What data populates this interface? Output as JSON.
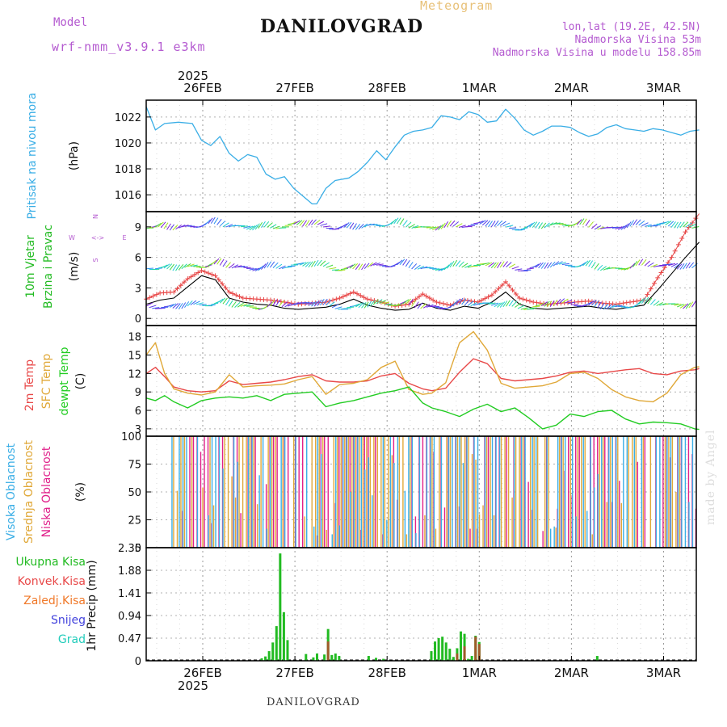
{
  "header": {
    "title": "DANILOVGRAD",
    "subtitle": "Meteogram",
    "model_label": "Model",
    "model_value": "wrf-nmm_v3.9.1 e3km",
    "lonlat": "lon,lat (19.2E, 42.5N)",
    "altitude": "Nadmorska Visina 53m",
    "model_altitude": "Nadmorska Visina u modelu 158.85m"
  },
  "footer": "DANILOVGRAD",
  "watermark": "made by Angel",
  "time_axis": {
    "year": "2025",
    "dates": [
      "26FEB",
      "27FEB",
      "28FEB",
      "1MAR",
      "2MAR",
      "3MAR"
    ]
  },
  "colors": {
    "pressure": "#3aaee6",
    "wind_label": "#22bb22",
    "t2m": "#e84848",
    "tsfc": "#e0a838",
    "dewpoint": "#22cc22",
    "high_cloud": "#3aaee6",
    "mid_cloud": "#e0a838",
    "low_cloud": "#e0208a",
    "total_precip": "#22bb22",
    "conv_precip": "#e84848",
    "frz_precip": "#f07828",
    "snow": "#4444dd",
    "hail": "#22ccbb",
    "compass": "#b45ad0"
  },
  "chart_data": [
    {
      "type": "line",
      "panel": "pressure",
      "ylabel_parts": [
        "Pritisak na nivou mora",
        "(hPa)"
      ],
      "yticks": [
        1016,
        1018,
        1020,
        1022
      ],
      "ylim": [
        1014.7,
        1023.3
      ],
      "x_days": [
        0,
        0.1,
        0.2,
        0.35,
        0.5,
        0.6,
        0.7,
        0.8,
        0.9,
        1.0,
        1.1,
        1.2,
        1.3,
        1.4,
        1.5,
        1.6,
        1.7,
        1.8,
        1.85,
        1.95,
        2.05,
        2.2,
        2.3,
        2.4,
        2.5,
        2.6,
        2.7,
        2.8,
        2.9,
        3.0,
        3.1,
        3.2,
        3.3,
        3.4,
        3.5,
        3.6,
        3.7,
        3.8,
        3.9,
        4.0,
        4.1,
        4.2,
        4.3,
        4.4,
        4.5,
        4.6,
        4.7,
        4.8,
        4.9,
        5.0,
        5.1,
        5.2,
        5.3,
        5.4,
        5.5,
        5.6,
        5.7,
        5.8,
        5.9,
        6.0
      ],
      "values": [
        1022.8,
        1021.0,
        1021.5,
        1021.6,
        1021.5,
        1020.2,
        1019.8,
        1020.5,
        1019.2,
        1018.6,
        1019.1,
        1018.9,
        1017.6,
        1017.2,
        1017.4,
        1016.5,
        1015.9,
        1015.3,
        1015.3,
        1016.5,
        1017.1,
        1017.3,
        1017.8,
        1018.5,
        1019.4,
        1018.7,
        1019.7,
        1020.6,
        1020.9,
        1021.0,
        1021.2,
        1022.1,
        1022.0,
        1021.8,
        1022.4,
        1022.2,
        1021.6,
        1021.7,
        1022.6,
        1021.9,
        1021.0,
        1020.6,
        1020.9,
        1021.3,
        1021.3,
        1021.2,
        1020.8,
        1020.5,
        1020.7,
        1021.2,
        1021.4,
        1021.1,
        1021.0,
        1020.9,
        1021.1,
        1021.0,
        1020.8,
        1020.6,
        1020.9,
        1021.0
      ],
      "series": [
        {
          "name": "Pritisak na nivou mora"
        }
      ]
    },
    {
      "type": "line",
      "panel": "wind",
      "ylabel_parts": [
        "10m Vjetar",
        "Brzina i Pravac",
        "(m/s)"
      ],
      "yticks": [
        0,
        3,
        6,
        9
      ],
      "ylim": [
        -0.7,
        10.5
      ],
      "compass": {
        "n": "N",
        "s": "S",
        "e": "E",
        "w": "W",
        "arrow": "<->"
      },
      "x_days": [
        0,
        0.15,
        0.3,
        0.45,
        0.6,
        0.75,
        0.9,
        1.05,
        1.2,
        1.35,
        1.5,
        1.65,
        1.8,
        1.95,
        2.1,
        2.25,
        2.4,
        2.55,
        2.7,
        2.85,
        3.0,
        3.15,
        3.3,
        3.45,
        3.6,
        3.75,
        3.9,
        4.05,
        4.2,
        4.35,
        4.5,
        4.65,
        4.8,
        4.95,
        5.1,
        5.25,
        5.4,
        5.55,
        5.7,
        5.85,
        6.0
      ],
      "series": [
        {
          "name": "speed",
          "values": [
            1.4,
            1.8,
            2.0,
            3.1,
            4.2,
            3.8,
            2.0,
            1.6,
            1.4,
            1.3,
            1.0,
            0.9,
            1.0,
            1.1,
            1.4,
            1.9,
            1.3,
            1.0,
            0.8,
            0.9,
            1.5,
            1.0,
            0.8,
            1.2,
            1.0,
            1.6,
            2.6,
            1.4,
            1.0,
            0.9,
            1.0,
            1.1,
            1.2,
            1.0,
            0.9,
            1.1,
            1.3,
            2.8,
            4.4,
            6.0,
            7.5
          ]
        },
        {
          "name": "gust",
          "values": [
            1.9,
            2.5,
            2.6,
            3.9,
            4.7,
            4.2,
            2.6,
            2.0,
            1.9,
            1.8,
            1.6,
            1.4,
            1.5,
            1.6,
            2.0,
            2.6,
            1.9,
            1.6,
            1.2,
            1.4,
            2.4,
            1.6,
            1.3,
            1.8,
            1.6,
            2.3,
            3.6,
            2.0,
            1.6,
            1.4,
            1.5,
            1.6,
            1.7,
            1.5,
            1.4,
            1.6,
            1.8,
            4.0,
            6.0,
            8.5,
            10.3
          ]
        }
      ]
    },
    {
      "type": "line",
      "panel": "temperature",
      "ylabel_parts": [
        "2m Temp",
        "SFC Temp",
        "dewpt Temp",
        "(C)"
      ],
      "yticks": [
        3,
        6,
        9,
        12,
        15,
        18
      ],
      "ylim": [
        1.8,
        19.8
      ],
      "x_days": [
        0,
        0.1,
        0.2,
        0.3,
        0.45,
        0.6,
        0.75,
        0.9,
        1.05,
        1.2,
        1.35,
        1.5,
        1.65,
        1.8,
        1.95,
        2.1,
        2.25,
        2.4,
        2.55,
        2.7,
        2.85,
        3.0,
        3.1,
        3.25,
        3.4,
        3.55,
        3.7,
        3.85,
        4.0,
        4.15,
        4.3,
        4.45,
        4.6,
        4.75,
        4.9,
        5.05,
        5.2,
        5.35,
        5.5,
        5.65,
        5.8,
        5.95,
        6.0
      ],
      "series": [
        {
          "name": "2m Temp",
          "values": [
            12.0,
            13.0,
            11.5,
            9.8,
            9.2,
            9.0,
            9.2,
            10.8,
            10.2,
            10.4,
            10.6,
            11.0,
            11.5,
            11.8,
            10.8,
            10.6,
            10.6,
            10.8,
            11.6,
            12.0,
            10.4,
            9.5,
            9.2,
            9.6,
            12.2,
            14.4,
            13.6,
            11.2,
            10.8,
            11.0,
            11.2,
            11.6,
            12.2,
            12.4,
            12.0,
            12.3,
            12.6,
            12.8,
            12.0,
            11.8,
            12.4,
            12.6,
            12.8
          ]
        },
        {
          "name": "SFC Temp",
          "values": [
            15.0,
            17.0,
            12.0,
            9.5,
            8.8,
            8.5,
            9.0,
            11.8,
            9.8,
            10.0,
            10.1,
            10.3,
            11.0,
            11.5,
            8.6,
            10.2,
            10.4,
            11.0,
            13.0,
            14.0,
            9.4,
            8.6,
            8.8,
            10.5,
            17.0,
            18.8,
            15.8,
            10.4,
            9.6,
            9.8,
            10.0,
            10.6,
            12.0,
            12.2,
            11.2,
            9.4,
            8.2,
            7.6,
            7.4,
            8.8,
            11.8,
            13.0,
            13.1
          ]
        },
        {
          "name": "dewpt Temp",
          "values": [
            8.0,
            7.6,
            8.4,
            7.4,
            6.4,
            7.6,
            8.0,
            8.2,
            8.0,
            8.4,
            7.6,
            8.6,
            8.8,
            9.0,
            6.6,
            7.2,
            7.6,
            8.2,
            8.8,
            9.2,
            9.8,
            7.2,
            6.4,
            5.8,
            5.0,
            6.2,
            7.0,
            5.8,
            6.4,
            4.8,
            3.0,
            3.6,
            5.4,
            5.0,
            5.8,
            6.0,
            4.6,
            3.8,
            4.1,
            4.0,
            3.8,
            3.0,
            2.9
          ]
        }
      ]
    },
    {
      "type": "bar",
      "panel": "clouds",
      "ylabel_parts": [
        "Visoka Oblacnost",
        "Srednja Oblacnost",
        "Niska Oblacnost",
        "(%)"
      ],
      "yticks": [
        0,
        25,
        50,
        75,
        100
      ],
      "ylim": [
        0,
        100
      ],
      "n_steps": 144,
      "note": "per-step cover: high (blue), middle (orange), low (pink); mostly 0 or 100 with partial values"
    },
    {
      "type": "bar",
      "panel": "precip",
      "ylabel_parts": [
        "1hr Precip",
        "(mm)"
      ],
      "yticks": [
        0,
        0.47,
        0.94,
        1.41,
        1.88,
        2.35
      ],
      "ylim": [
        0,
        2.35
      ],
      "legend": [
        "Ukupna Kisa",
        "Konvek.Kisa",
        "Zaledj.Kisa",
        "Snijeg",
        "Grad"
      ],
      "bars": [
        {
          "day": 0.64,
          "total": 0.05,
          "conv": 0
        },
        {
          "day": 0.68,
          "total": 0.09,
          "conv": 0
        },
        {
          "day": 0.72,
          "total": 0.2,
          "conv": 0
        },
        {
          "day": 0.76,
          "total": 0.38,
          "conv": 0
        },
        {
          "day": 0.8,
          "total": 0.72,
          "conv": 0
        },
        {
          "day": 0.84,
          "total": 2.23,
          "conv": 0
        },
        {
          "day": 0.88,
          "total": 1.01,
          "conv": 0
        },
        {
          "day": 0.92,
          "total": 0.43,
          "conv": 0
        },
        {
          "day": 1.12,
          "total": 0.14,
          "conv": 0
        },
        {
          "day": 1.2,
          "total": 0.07,
          "conv": 0
        },
        {
          "day": 1.24,
          "total": 0.15,
          "conv": 0
        },
        {
          "day": 1.32,
          "total": 0.13,
          "conv": 0
        },
        {
          "day": 1.36,
          "total": 0.66,
          "conv": 0.4
        },
        {
          "day": 1.4,
          "total": 0.12,
          "conv": 0
        },
        {
          "day": 1.44,
          "total": 0.15,
          "conv": 0
        },
        {
          "day": 1.48,
          "total": 0.1,
          "conv": 0
        },
        {
          "day": 1.8,
          "total": 0.1,
          "conv": 0
        },
        {
          "day": 1.88,
          "total": 0.06,
          "conv": 0
        },
        {
          "day": 1.96,
          "total": 0.04,
          "conv": 0
        },
        {
          "day": 2.48,
          "total": 0.2,
          "conv": 0
        },
        {
          "day": 2.52,
          "total": 0.4,
          "conv": 0
        },
        {
          "day": 2.56,
          "total": 0.47,
          "conv": 0
        },
        {
          "day": 2.6,
          "total": 0.5,
          "conv": 0
        },
        {
          "day": 2.64,
          "total": 0.38,
          "conv": 0
        },
        {
          "day": 2.68,
          "total": 0.25,
          "conv": 0
        },
        {
          "day": 2.72,
          "total": 0.08,
          "conv": 0
        },
        {
          "day": 2.76,
          "total": 0.26,
          "conv": 0.15
        },
        {
          "day": 2.8,
          "total": 0.61,
          "conv": 0
        },
        {
          "day": 2.84,
          "total": 0.56,
          "conv": 0.3
        },
        {
          "day": 2.88,
          "total": 0.04,
          "conv": 0
        },
        {
          "day": 2.92,
          "total": 0.1,
          "conv": 0
        },
        {
          "day": 2.96,
          "total": 0.52,
          "conv": 0.5
        },
        {
          "day": 3.0,
          "total": 0.39,
          "conv": 0.35
        },
        {
          "day": 4.28,
          "total": 0.1,
          "conv": 0
        }
      ]
    }
  ]
}
